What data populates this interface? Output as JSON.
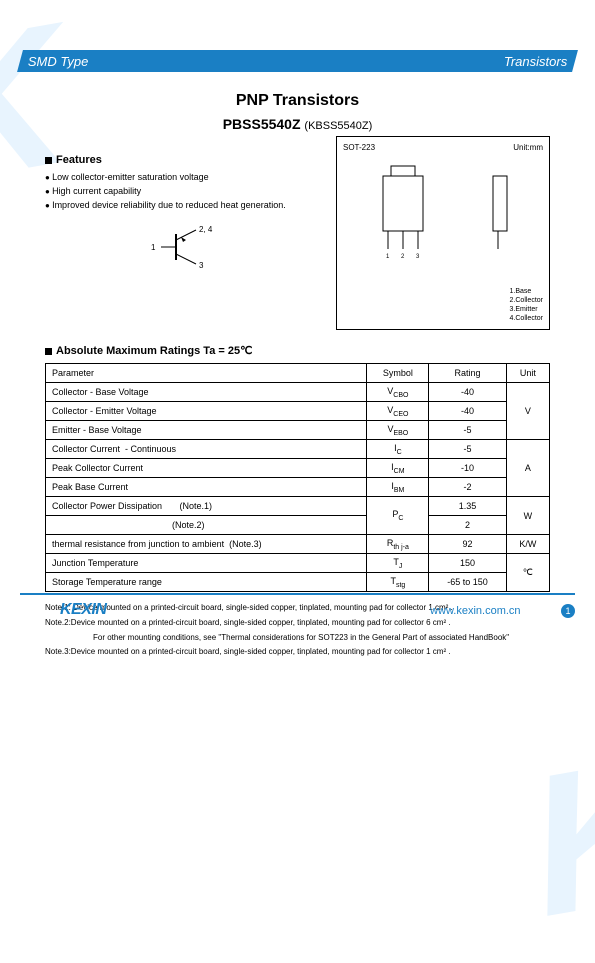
{
  "header": {
    "left": "SMD Type",
    "right": "Transistors"
  },
  "title": "PNP  Transistors",
  "part": "PBSS5540Z",
  "alt": "(KBSS5540Z)",
  "features": {
    "heading": "Features",
    "items": [
      "Low collector-emitter saturation voltage",
      "High current capability",
      "Improved device reliability due to reduced heat generation."
    ]
  },
  "symbol_pins": {
    "p1": "1",
    "p24": "2, 4",
    "p3": "3"
  },
  "package": {
    "name": "SOT-223",
    "unit": "Unit:mm",
    "legend": [
      "1.Base",
      "2.Collector",
      "3.Emitter",
      "4.Collector"
    ]
  },
  "ratings": {
    "heading": "Absolute Maximum Ratings Ta = 25℃",
    "cols": [
      "Parameter",
      "Symbol",
      "Rating",
      "Unit"
    ],
    "rows": [
      {
        "param": "Collector - Base Voltage",
        "sym": "V",
        "sub": "CBO",
        "rating": "-40",
        "unit": "V",
        "unit_rowspan": 3
      },
      {
        "param": "Collector - Emitter Voltage",
        "sym": "V",
        "sub": "CEO",
        "rating": "-40"
      },
      {
        "param": "Emitter - Base Voltage",
        "sym": "V",
        "sub": "EBO",
        "rating": "-5"
      },
      {
        "param": "Collector Current  - Continuous",
        "sym": "I",
        "sub": "C",
        "rating": "-5",
        "unit": "A",
        "unit_rowspan": 3
      },
      {
        "param": "Peak Collector Current",
        "sym": "I",
        "sub": "CM",
        "rating": "-10"
      },
      {
        "param": "Peak Base Current",
        "sym": "I",
        "sub": "BM",
        "rating": "-2"
      },
      {
        "param": "Collector Power Dissipation       (Note.1)",
        "sym": "P",
        "sub": "C",
        "rating": "1.35",
        "unit": "W",
        "unit_rowspan": 2,
        "sym_rowspan": 2
      },
      {
        "param": "                                                (Note.2)",
        "rating": "2"
      },
      {
        "param": "thermal resistance from junction to ambient  (Note.3)",
        "sym": "R",
        "sub": "th j-a",
        "rating": "92",
        "unit": "K/W"
      },
      {
        "param": "Junction Temperature",
        "sym": "T",
        "sub": "J",
        "rating": "150",
        "unit": "℃",
        "unit_rowspan": 2
      },
      {
        "param": "Storage Temperature range",
        "sym": "T",
        "sub": "stg",
        "rating": "-65 to 150"
      }
    ]
  },
  "notes": [
    "Note.1: Device mounted on a printed-circuit board, single-sided copper, tinplated, mounting pad for collector 1 cm² .",
    "Note.2:Device mounted on a printed-circuit board, single-sided copper, tinplated, mounting pad for collector 6 cm² .",
    "For other mounting conditions, see \"Thermal considerations for SOT223 in the General Part of associated HandBook\"",
    "Note.3:Device mounted on a printed-circuit board, single-sided copper, tinplated, mounting pad for collector 1 cm²  ."
  ],
  "footer": {
    "logo": "KEXIN",
    "url": "www.kexin.com.cn",
    "page": "1"
  }
}
